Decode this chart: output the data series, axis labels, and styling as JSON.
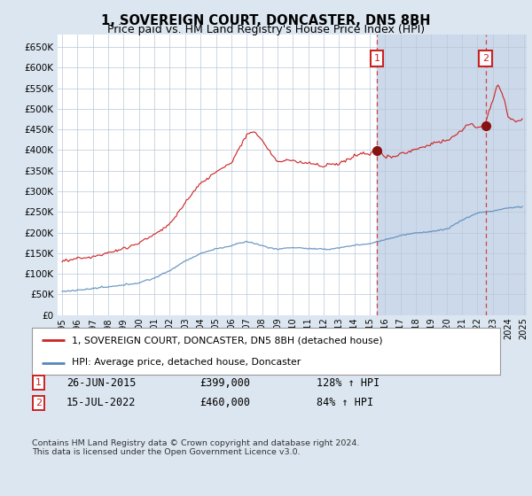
{
  "title": "1, SOVEREIGN COURT, DONCASTER, DN5 8BH",
  "subtitle": "Price paid vs. HM Land Registry's House Price Index (HPI)",
  "bg_color": "#dce6f0",
  "plot_bg_color": "#ffffff",
  "shade_bg_color": "#ccd9ea",
  "legend_label_red": "1, SOVEREIGN COURT, DONCASTER, DN5 8BH (detached house)",
  "legend_label_blue": "HPI: Average price, detached house, Doncaster",
  "sale1_date": "26-JUN-2015",
  "sale1_price": "£399,000",
  "sale1_hpi": "128% ↑ HPI",
  "sale2_date": "15-JUL-2022",
  "sale2_price": "£460,000",
  "sale2_hpi": "84% ↑ HPI",
  "footnote": "Contains HM Land Registry data © Crown copyright and database right 2024.\nThis data is licensed under the Open Government Licence v3.0.",
  "ylim": [
    0,
    680000
  ],
  "ytick_vals": [
    0,
    50000,
    100000,
    150000,
    200000,
    250000,
    300000,
    350000,
    400000,
    450000,
    500000,
    550000,
    600000,
    650000
  ],
  "sale1_x": 2015.46,
  "sale2_x": 2022.54,
  "red_color": "#cc2222",
  "blue_color": "#5588bb",
  "dashed_color": "#cc4444"
}
